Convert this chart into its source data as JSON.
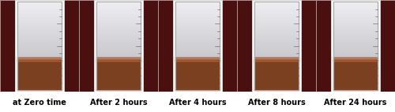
{
  "labels": [
    "at Zero time",
    "After 2 hours",
    "After 4 hours",
    "After 8 hours",
    "After 24 hours"
  ],
  "label_fontsize": 7,
  "label_fontweight": "bold",
  "bg_color": "#000000",
  "tube_bg": "#d8d8d8",
  "tube_top_color": "#e8e8e8",
  "tube_bottom_color": "#8B5A2B",
  "wood_color": "#4a1010",
  "border_color": "#cccccc",
  "figure_bg": "#ffffff",
  "n_panels": 5,
  "figwidth": 5.0,
  "figheight": 1.43,
  "dpi": 100
}
